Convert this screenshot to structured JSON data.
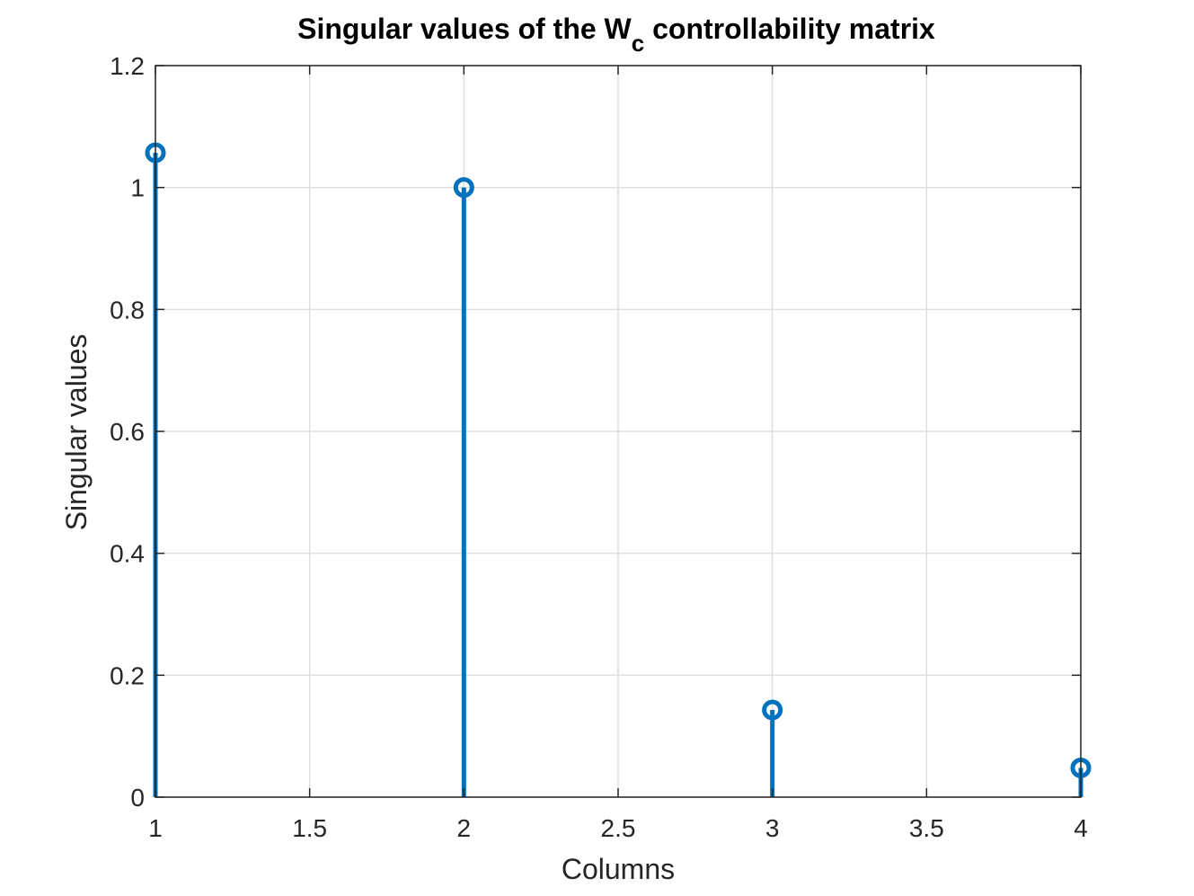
{
  "chart_data": {
    "type": "stem",
    "title": {
      "prefix": "Singular values of the W",
      "subscript": "c",
      "suffix": " controllability matrix"
    },
    "xlabel": "Columns",
    "ylabel": "Singular values",
    "xlim": [
      1,
      4
    ],
    "ylim": [
      0,
      1.2
    ],
    "xticks": [
      1,
      1.5,
      2,
      2.5,
      3,
      3.5,
      4
    ],
    "xtick_labels": [
      "1",
      "1.5",
      "2",
      "2.5",
      "3",
      "3.5",
      "4"
    ],
    "yticks": [
      0,
      0.2,
      0.4,
      0.6,
      0.8,
      1,
      1.2
    ],
    "ytick_labels": [
      "0",
      "0.2",
      "0.4",
      "0.6",
      "0.8",
      "1",
      "1.2"
    ],
    "grid": true,
    "series": [
      {
        "color": "#0072BD",
        "marker": "circle-open",
        "x": [
          1,
          2,
          3,
          4
        ],
        "y": [
          1.057,
          1.0,
          0.143,
          0.048
        ]
      }
    ]
  }
}
